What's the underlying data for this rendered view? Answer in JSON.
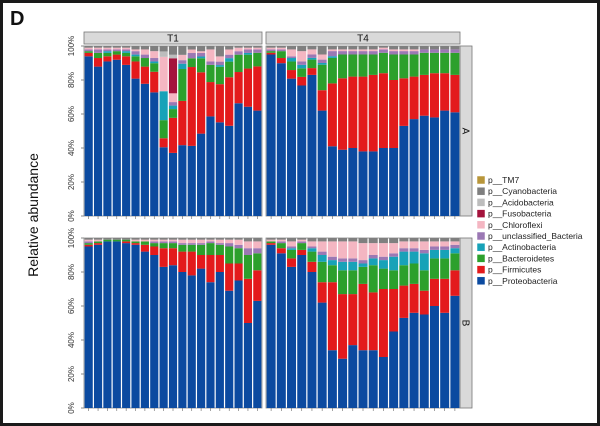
{
  "panel_label": "D",
  "chart_data": {
    "type": "bar",
    "stacked": true,
    "ylabel": "Relative abundance",
    "yticks": [
      "0%",
      "20%",
      "40%",
      "60%",
      "80%",
      "100%"
    ],
    "ylim": [
      0,
      100
    ],
    "facet_columns": [
      "T1",
      "T4"
    ],
    "facet_rows": [
      "A",
      "B"
    ],
    "legend_position": "right",
    "legend": [
      {
        "name": "p__TM7",
        "color": "#b8963a"
      },
      {
        "name": "p__Cyanobacteria",
        "color": "#7f7f7f"
      },
      {
        "name": "p__Acidobacteria",
        "color": "#bdbdbd"
      },
      {
        "name": "p__Fusobacteria",
        "color": "#a4133c"
      },
      {
        "name": "p__Chloroflexi",
        "color": "#f4b6c2"
      },
      {
        "name": "p__unclassified_Bacteria",
        "color": "#9b78b4"
      },
      {
        "name": "p__Actinobacteria",
        "color": "#17a2b8"
      },
      {
        "name": "p__Bacteroidetes",
        "color": "#2ca02c"
      },
      {
        "name": "p__Firmicutes",
        "color": "#e31a1c"
      },
      {
        "name": "p__Proteobacteria",
        "color": "#0b4aa0"
      }
    ],
    "series_order_bottom_to_top": [
      "p__Proteobacteria",
      "p__Firmicutes",
      "p__Bacteroidetes",
      "p__Actinobacteria",
      "p__unclassified_Bacteria",
      "p__Chloroflexi",
      "p__Fusobacteria",
      "p__Acidobacteria",
      "p__Cyanobacteria",
      "p__TM7"
    ],
    "panels": [
      {
        "row": "A",
        "col": "T1",
        "bars": [
          [
            93,
            2,
            1,
            0,
            1,
            1,
            0,
            0,
            1,
            0
          ],
          [
            87,
            5,
            3,
            0,
            2,
            1,
            0,
            0,
            1,
            0
          ],
          [
            90,
            3,
            2,
            1,
            1,
            1,
            0,
            0,
            1,
            0
          ],
          [
            91,
            3,
            2,
            0,
            1,
            1,
            0,
            0,
            1,
            0
          ],
          [
            88,
            5,
            2,
            1,
            1,
            1,
            0,
            0,
            1,
            0
          ],
          [
            80,
            10,
            3,
            1,
            2,
            1,
            0,
            0,
            2,
            0
          ],
          [
            77,
            10,
            5,
            0,
            2,
            3,
            0,
            0,
            2,
            0
          ],
          [
            72,
            12,
            5,
            1,
            2,
            4,
            0,
            0,
            3,
            0
          ],
          [
            38,
            5,
            10,
            16,
            0,
            19,
            0,
            3,
            3,
            0
          ],
          [
            36,
            20,
            5,
            2,
            2,
            5,
            20,
            2,
            5,
            0
          ],
          [
            40,
            25,
            18,
            3,
            2,
            3,
            0,
            0,
            5,
            0
          ],
          [
            40,
            45,
            5,
            0,
            3,
            2,
            0,
            0,
            2,
            0
          ],
          [
            47,
            35,
            8,
            1,
            2,
            1,
            0,
            0,
            3,
            0
          ],
          [
            58,
            20,
            10,
            0,
            2,
            7,
            0,
            0,
            2,
            0
          ],
          [
            54,
            22,
            10,
            1,
            2,
            3,
            0,
            0,
            6,
            0
          ],
          [
            52,
            28,
            9,
            2,
            2,
            3,
            0,
            0,
            2,
            0
          ],
          [
            65,
            18,
            10,
            0,
            2,
            2,
            0,
            0,
            1,
            0
          ],
          [
            63,
            22,
            8,
            1,
            2,
            1,
            0,
            0,
            1,
            0
          ],
          [
            62,
            26,
            8,
            0,
            2,
            1,
            0,
            0,
            1,
            0
          ]
        ]
      },
      {
        "row": "A",
        "col": "T4",
        "bars": [
          [
            95,
            1,
            1,
            0,
            1,
            1,
            0,
            0,
            1,
            0
          ],
          [
            89,
            3,
            4,
            0,
            1,
            1,
            0,
            0,
            1,
            0
          ],
          [
            80,
            5,
            5,
            2,
            1,
            4,
            0,
            0,
            2,
            0
          ],
          [
            76,
            5,
            5,
            2,
            2,
            6,
            0,
            0,
            3,
            0
          ],
          [
            83,
            4,
            5,
            1,
            2,
            3,
            0,
            0,
            2,
            0
          ],
          [
            62,
            12,
            15,
            1,
            2,
            3,
            0,
            0,
            5,
            0
          ],
          [
            41,
            37,
            15,
            1,
            3,
            1,
            0,
            0,
            2,
            0
          ],
          [
            39,
            42,
            14,
            0,
            2,
            1,
            0,
            0,
            2,
            0
          ],
          [
            40,
            42,
            13,
            0,
            2,
            1,
            0,
            0,
            2,
            0
          ],
          [
            38,
            44,
            13,
            0,
            2,
            1,
            0,
            0,
            2,
            0
          ],
          [
            38,
            45,
            12,
            0,
            2,
            1,
            0,
            0,
            2,
            0
          ],
          [
            40,
            44,
            12,
            0,
            2,
            1,
            0,
            0,
            1,
            0
          ],
          [
            40,
            40,
            15,
            0,
            2,
            1,
            0,
            0,
            2,
            0
          ],
          [
            53,
            28,
            14,
            0,
            2,
            1,
            0,
            0,
            2,
            0
          ],
          [
            57,
            25,
            13,
            0,
            2,
            1,
            0,
            0,
            2,
            0
          ],
          [
            59,
            24,
            13,
            0,
            2,
            0,
            0,
            0,
            2,
            0
          ],
          [
            58,
            26,
            12,
            0,
            2,
            0,
            0,
            0,
            2,
            0
          ],
          [
            62,
            22,
            12,
            0,
            2,
            0,
            0,
            0,
            2,
            0
          ],
          [
            61,
            22,
            13,
            0,
            2,
            0,
            0,
            0,
            2,
            0
          ]
        ]
      },
      {
        "row": "B",
        "col": "T1",
        "bars": [
          [
            95,
            1,
            1,
            0,
            1,
            1,
            0,
            0,
            1,
            0
          ],
          [
            96,
            1,
            1,
            0,
            0,
            1,
            0,
            0,
            1,
            0
          ],
          [
            98,
            0,
            1,
            0,
            0,
            0,
            0,
            0,
            1,
            0
          ],
          [
            98,
            0,
            1,
            0,
            0,
            0,
            0,
            0,
            1,
            0
          ],
          [
            97,
            1,
            1,
            0,
            0,
            0,
            0,
            0,
            1,
            0
          ],
          [
            96,
            1,
            1,
            0,
            0,
            1,
            0,
            0,
            1,
            0
          ],
          [
            92,
            4,
            2,
            0,
            0,
            1,
            0,
            0,
            1,
            0
          ],
          [
            90,
            5,
            2,
            0,
            1,
            1,
            0,
            0,
            1,
            0
          ],
          [
            83,
            11,
            3,
            0,
            1,
            1,
            0,
            0,
            1,
            0
          ],
          [
            84,
            10,
            3,
            0,
            1,
            1,
            0,
            0,
            1,
            0
          ],
          [
            80,
            12,
            4,
            0,
            1,
            2,
            0,
            0,
            1,
            0
          ],
          [
            78,
            14,
            4,
            0,
            1,
            2,
            0,
            0,
            1,
            0
          ],
          [
            82,
            8,
            6,
            0,
            1,
            2,
            0,
            0,
            1,
            0
          ],
          [
            74,
            16,
            7,
            0,
            1,
            1,
            0,
            0,
            1,
            0
          ],
          [
            80,
            10,
            6,
            0,
            1,
            2,
            0,
            0,
            1,
            0
          ],
          [
            69,
            16,
            10,
            0,
            2,
            2,
            0,
            0,
            1,
            0
          ],
          [
            75,
            10,
            9,
            0,
            2,
            3,
            0,
            0,
            1,
            0
          ],
          [
            50,
            26,
            14,
            0,
            4,
            4,
            0,
            0,
            2,
            0
          ],
          [
            63,
            18,
            10,
            0,
            3,
            4,
            0,
            0,
            2,
            0
          ]
        ]
      },
      {
        "row": "B",
        "col": "T4",
        "bars": [
          [
            96,
            1,
            1,
            0,
            0,
            1,
            0,
            0,
            1,
            0
          ],
          [
            91,
            3,
            3,
            0,
            1,
            1,
            0,
            0,
            1,
            0
          ],
          [
            83,
            5,
            5,
            1,
            1,
            3,
            0,
            0,
            2,
            0
          ],
          [
            90,
            3,
            4,
            0,
            1,
            1,
            0,
            0,
            1,
            0
          ],
          [
            80,
            6,
            6,
            2,
            1,
            3,
            0,
            0,
            2,
            0
          ],
          [
            62,
            12,
            12,
            4,
            2,
            6,
            0,
            0,
            2,
            0
          ],
          [
            34,
            40,
            10,
            3,
            2,
            9,
            0,
            0,
            2,
            0
          ],
          [
            29,
            38,
            14,
            5,
            2,
            10,
            0,
            0,
            2,
            0
          ],
          [
            37,
            30,
            14,
            5,
            2,
            10,
            0,
            0,
            2,
            0
          ],
          [
            34,
            39,
            10,
            2,
            2,
            10,
            0,
            0,
            3,
            0
          ],
          [
            34,
            34,
            16,
            4,
            2,
            7,
            0,
            0,
            3,
            0
          ],
          [
            30,
            40,
            12,
            5,
            2,
            8,
            0,
            0,
            3,
            0
          ],
          [
            45,
            25,
            11,
            8,
            2,
            6,
            0,
            0,
            3,
            0
          ],
          [
            53,
            19,
            12,
            8,
            2,
            4,
            0,
            0,
            2,
            0
          ],
          [
            56,
            17,
            12,
            7,
            2,
            4,
            0,
            0,
            2,
            0
          ],
          [
            55,
            14,
            12,
            10,
            2,
            5,
            0,
            0,
            2,
            0
          ],
          [
            60,
            16,
            12,
            5,
            2,
            3,
            0,
            0,
            2,
            0
          ],
          [
            56,
            20,
            12,
            5,
            2,
            3,
            0,
            0,
            2,
            0
          ],
          [
            66,
            15,
            10,
            3,
            2,
            2,
            0,
            0,
            2,
            0
          ]
        ]
      }
    ]
  }
}
